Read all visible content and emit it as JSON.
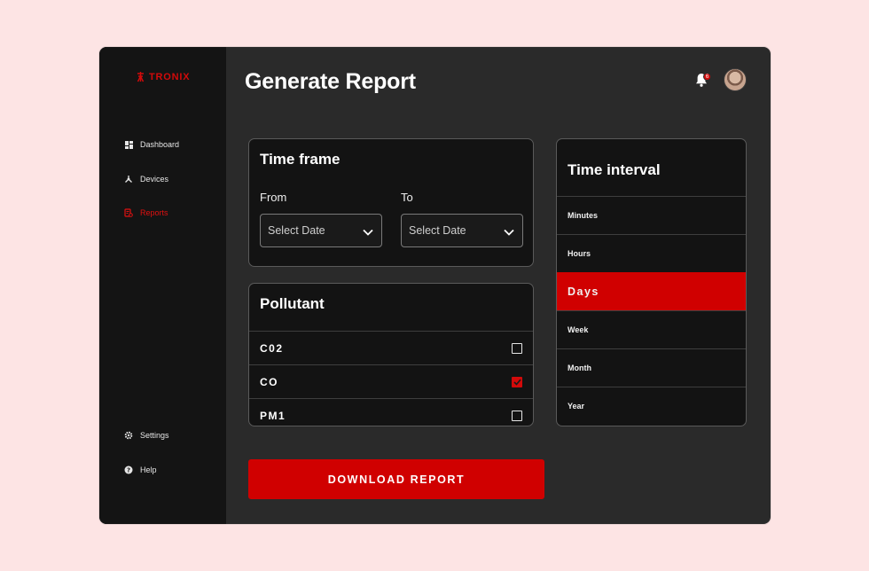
{
  "brand": {
    "name": "TRONIX",
    "accent": "#d20a0a"
  },
  "sidebar": {
    "top_items": [
      {
        "label": "Dashboard",
        "icon": "grid-icon"
      },
      {
        "label": "Devices",
        "icon": "devices-icon"
      },
      {
        "label": "Reports",
        "icon": "reports-icon",
        "active": true
      }
    ],
    "bottom_items": [
      {
        "label": "Settings",
        "icon": "gear-icon"
      },
      {
        "label": "Help",
        "icon": "help-icon"
      }
    ]
  },
  "header": {
    "title": "Generate Report",
    "notification_count": "6"
  },
  "time_frame": {
    "title": "Time frame",
    "from_label": "From",
    "to_label": "To",
    "from_value": "Select Date",
    "to_value": "Select Date"
  },
  "pollutant": {
    "title": "Pollutant",
    "items": [
      {
        "label": "C02",
        "checked": false
      },
      {
        "label": "CO",
        "checked": true
      },
      {
        "label": "PM1",
        "checked": false
      }
    ]
  },
  "time_interval": {
    "title": "Time interval",
    "options": [
      "Minutes",
      "Hours",
      "Days",
      "Week",
      "Month",
      "Year"
    ],
    "selected": "Days"
  },
  "actions": {
    "download_label": "DOWNLOAD REPORT"
  }
}
